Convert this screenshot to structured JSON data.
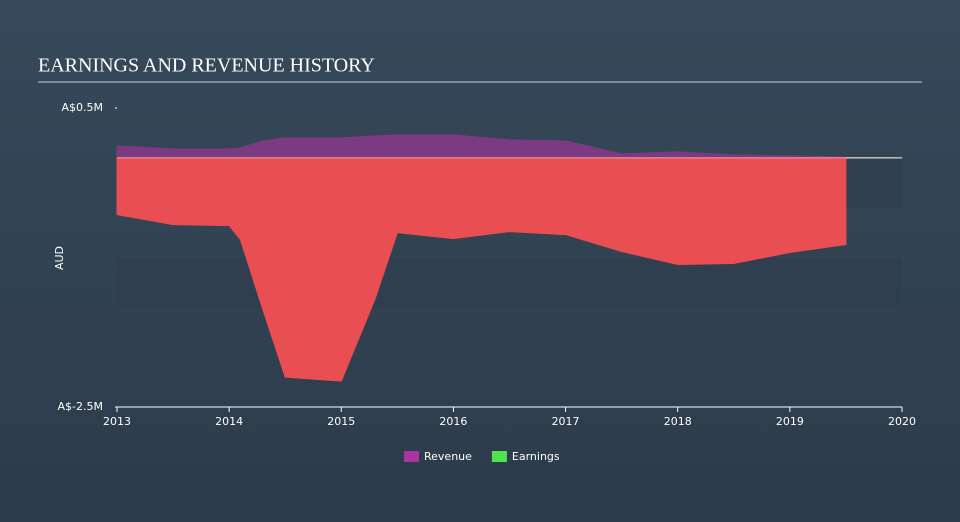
{
  "chart_data": {
    "type": "area",
    "title": "EARNINGS AND REVENUE HISTORY",
    "y_label": "AUD",
    "x": [
      2013,
      2013.5,
      2014,
      2014.1,
      2014.3,
      2014.5,
      2015,
      2015.3,
      2015.5,
      2016,
      2016.5,
      2017,
      2017.5,
      2018,
      2018.5,
      2019,
      2019.5
    ],
    "series": [
      {
        "name": "Revenue",
        "color": "#a8369f",
        "fill": "#7b3a82",
        "values": [
          120000,
          90000,
          90000,
          100000,
          170000,
          200000,
          200000,
          220000,
          230000,
          230000,
          180000,
          170000,
          40000,
          60000,
          30000,
          20000,
          10000
        ]
      },
      {
        "name": "Earnings",
        "color": "#4fe34f",
        "fill": "#e84e52",
        "values": [
          -570000,
          -670000,
          -680000,
          -820000,
          -1520000,
          -2200000,
          -2240000,
          -1420000,
          -750000,
          -810000,
          -740000,
          -770000,
          -940000,
          -1070000,
          -1060000,
          -950000,
          -870000
        ]
      }
    ],
    "xlim": [
      2013,
      2020
    ],
    "xticks": [
      2013,
      2014,
      2015,
      2016,
      2017,
      2018,
      2019,
      2020
    ],
    "ylim": [
      -2500000,
      500000
    ],
    "yticks": [
      {
        "value": 500000,
        "label": "A$0.5M"
      },
      {
        "value": -2500000,
        "label": "A$-2.5M"
      }
    ],
    "legend": "bottom"
  }
}
